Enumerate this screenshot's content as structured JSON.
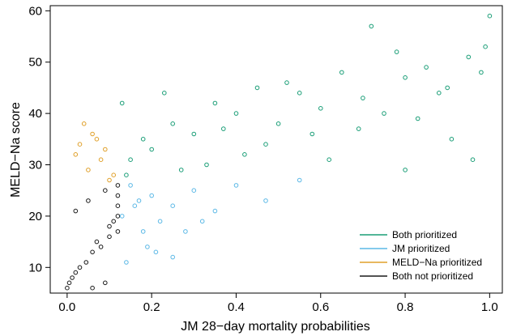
{
  "chart_data": {
    "type": "scatter",
    "title": "",
    "xlabel": "JM 28−day mortality probabilities",
    "ylabel": "MELD−Na score",
    "xlim": [
      -0.04,
      1.03
    ],
    "ylim": [
      5,
      61
    ],
    "x_ticks": [
      "0.0",
      "0.2",
      "0.4",
      "0.6",
      "0.8",
      "1.0"
    ],
    "y_ticks": [
      "10",
      "20",
      "30",
      "40",
      "50",
      "60"
    ],
    "grid": false,
    "legend_position": "bottom-right",
    "series": [
      {
        "name": "Both prioritized",
        "color": "#1a9e77"
      },
      {
        "name": "JM prioritized",
        "color": "#5bb8e6"
      },
      {
        "name": "MELD−Na prioritized",
        "color": "#e0a02a"
      },
      {
        "name": "Both not prioritized",
        "color": "#1a1a1a"
      }
    ],
    "points": {
      "both_not": [
        [
          0.0,
          6
        ],
        [
          0.005,
          7
        ],
        [
          0.012,
          8
        ],
        [
          0.02,
          9
        ],
        [
          0.03,
          10
        ],
        [
          0.045,
          11
        ],
        [
          0.06,
          13
        ],
        [
          0.08,
          14
        ],
        [
          0.07,
          15
        ],
        [
          0.1,
          16
        ],
        [
          0.12,
          17
        ],
        [
          0.1,
          18
        ],
        [
          0.11,
          19
        ],
        [
          0.12,
          20
        ],
        [
          0.12,
          22
        ],
        [
          0.12,
          24
        ],
        [
          0.12,
          26
        ],
        [
          0.06,
          6
        ],
        [
          0.09,
          7
        ],
        [
          0.02,
          21
        ],
        [
          0.05,
          23
        ],
        [
          0.09,
          25
        ]
      ],
      "jm": [
        [
          0.13,
          20
        ],
        [
          0.16,
          22
        ],
        [
          0.2,
          24
        ],
        [
          0.25,
          22
        ],
        [
          0.3,
          25
        ],
        [
          0.35,
          21
        ],
        [
          0.4,
          26
        ],
        [
          0.47,
          23
        ],
        [
          0.55,
          27
        ],
        [
          0.19,
          14
        ],
        [
          0.21,
          13
        ],
        [
          0.25,
          12
        ],
        [
          0.18,
          17
        ],
        [
          0.17,
          23
        ],
        [
          0.22,
          19
        ],
        [
          0.15,
          26
        ],
        [
          0.14,
          11
        ],
        [
          0.32,
          19
        ],
        [
          0.28,
          17
        ]
      ],
      "meld": [
        [
          0.04,
          38
        ],
        [
          0.06,
          36
        ],
        [
          0.03,
          34
        ],
        [
          0.08,
          31
        ],
        [
          0.07,
          35
        ],
        [
          0.05,
          29
        ],
        [
          0.1,
          27
        ],
        [
          0.09,
          33
        ],
        [
          0.02,
          32
        ],
        [
          0.11,
          28
        ]
      ],
      "both": [
        [
          0.14,
          28
        ],
        [
          0.2,
          33
        ],
        [
          0.25,
          38
        ],
        [
          0.3,
          36
        ],
        [
          0.35,
          42
        ],
        [
          0.4,
          40
        ],
        [
          0.45,
          45
        ],
        [
          0.5,
          38
        ],
        [
          0.55,
          44
        ],
        [
          0.6,
          41
        ],
        [
          0.65,
          48
        ],
        [
          0.7,
          43
        ],
        [
          0.75,
          40
        ],
        [
          0.8,
          47
        ],
        [
          0.85,
          49
        ],
        [
          0.9,
          45
        ],
        [
          0.95,
          51
        ],
        [
          1.0,
          59
        ],
        [
          0.72,
          57
        ],
        [
          0.78,
          52
        ],
        [
          0.99,
          53
        ],
        [
          0.98,
          48
        ],
        [
          0.88,
          44
        ],
        [
          0.83,
          39
        ],
        [
          0.62,
          31
        ],
        [
          0.58,
          36
        ],
        [
          0.42,
          32
        ],
        [
          0.33,
          30
        ],
        [
          0.27,
          29
        ],
        [
          0.18,
          35
        ],
        [
          0.13,
          42
        ],
        [
          0.23,
          44
        ],
        [
          0.91,
          35
        ],
        [
          0.96,
          31
        ],
        [
          0.8,
          29
        ],
        [
          0.69,
          37
        ],
        [
          0.52,
          46
        ],
        [
          0.47,
          34
        ],
        [
          0.37,
          37
        ],
        [
          0.15,
          31
        ]
      ]
    }
  }
}
